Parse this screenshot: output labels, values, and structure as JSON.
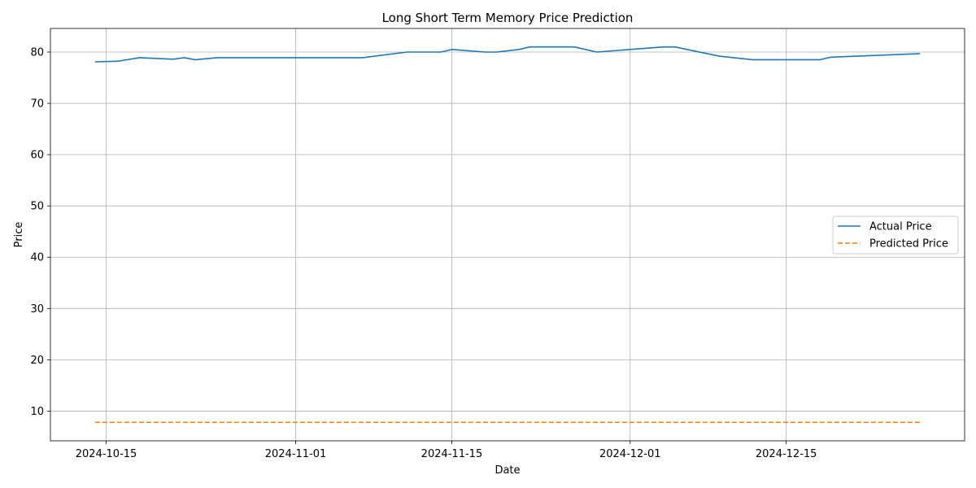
{
  "chart_data": {
    "type": "line",
    "title": "Long Short Term Memory Price Prediction",
    "xlabel": "Date",
    "ylabel": "Price",
    "xlim": [
      "2024-10-10",
      "2024-12-31"
    ],
    "ylim": [
      4.2,
      84.6
    ],
    "x_ticks": [
      "2024-10-15",
      "2024-11-01",
      "2024-11-15",
      "2024-12-01",
      "2024-12-15"
    ],
    "y_ticks": [
      10,
      20,
      30,
      40,
      50,
      60,
      70,
      80
    ],
    "grid": true,
    "legend_position": "center-right",
    "series": [
      {
        "name": "Actual Price",
        "color": "#1f77b4",
        "style": "solid",
        "points": [
          [
            "2024-10-14",
            78.1
          ],
          [
            "2024-10-16",
            78.2
          ],
          [
            "2024-10-18",
            78.9
          ],
          [
            "2024-10-21",
            78.6
          ],
          [
            "2024-10-22",
            78.9
          ],
          [
            "2024-10-23",
            78.5
          ],
          [
            "2024-10-25",
            78.9
          ],
          [
            "2024-11-07",
            78.9
          ],
          [
            "2024-11-11",
            80.0
          ],
          [
            "2024-11-14",
            80.0
          ],
          [
            "2024-11-15",
            80.5
          ],
          [
            "2024-11-18",
            80.0
          ],
          [
            "2024-11-19",
            80.0
          ],
          [
            "2024-11-21",
            80.5
          ],
          [
            "2024-11-22",
            81.0
          ],
          [
            "2024-11-26",
            81.0
          ],
          [
            "2024-11-28",
            80.0
          ],
          [
            "2024-12-01",
            80.5
          ],
          [
            "2024-12-04",
            81.0
          ],
          [
            "2024-12-05",
            81.0
          ],
          [
            "2024-12-09",
            79.2
          ],
          [
            "2024-12-12",
            78.5
          ],
          [
            "2024-12-18",
            78.5
          ],
          [
            "2024-12-19",
            79.0
          ],
          [
            "2024-12-27",
            79.7
          ]
        ]
      },
      {
        "name": "Predicted Price",
        "color": "#ff7f0e",
        "style": "dashed",
        "points": [
          [
            "2024-10-14",
            7.8
          ],
          [
            "2024-12-27",
            7.8
          ]
        ]
      }
    ]
  }
}
